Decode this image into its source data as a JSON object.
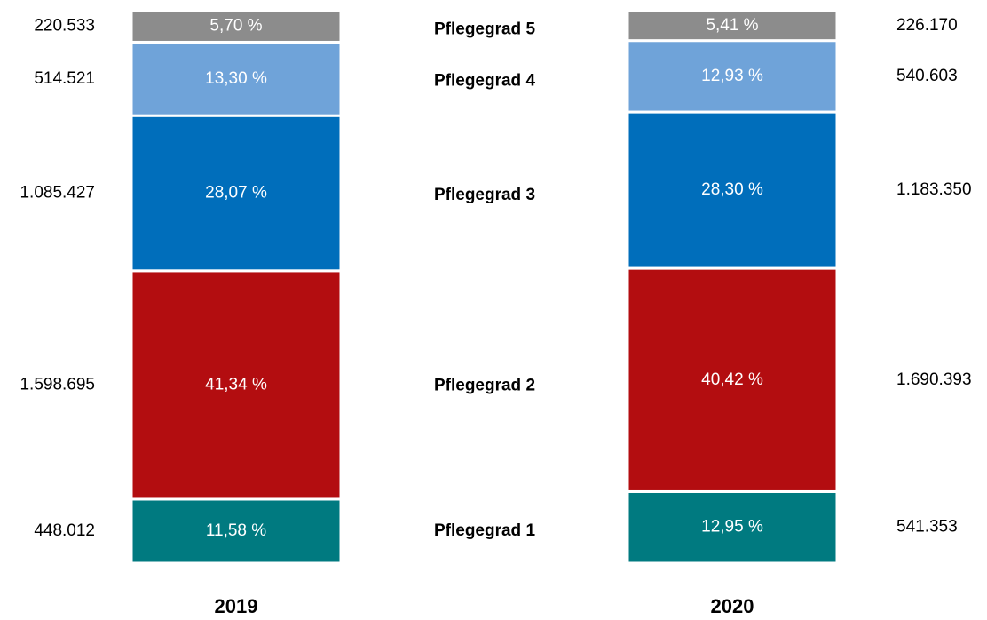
{
  "chart_data": {
    "type": "bar",
    "stacked": true,
    "categories": [
      "2019",
      "2020"
    ],
    "series": [
      {
        "name": "Pflegegrad 1",
        "color": "#007a80",
        "values": [
          11.58,
          12.95
        ],
        "value_labels": [
          "11,58 %",
          "12,95 %"
        ],
        "counts": [
          448012,
          541353
        ],
        "count_labels": [
          "448.012",
          "541.353"
        ]
      },
      {
        "name": "Pflegegrad 2",
        "color": "#b30d10",
        "values": [
          41.34,
          40.42
        ],
        "value_labels": [
          "41,34 %",
          "40,42 %"
        ],
        "counts": [
          1598695,
          1690393
        ],
        "count_labels": [
          "1.598.695",
          "1.690.393"
        ]
      },
      {
        "name": "Pflegegrad 3",
        "color": "#006ebb",
        "values": [
          28.07,
          28.3
        ],
        "value_labels": [
          "28,07 %",
          "28,30 %"
        ],
        "counts": [
          1085427,
          1183350
        ],
        "count_labels": [
          "1.085.427",
          "1.183.350"
        ]
      },
      {
        "name": "Pflegegrad 4",
        "color": "#6fa3d9",
        "values": [
          13.3,
          12.93
        ],
        "value_labels": [
          "13,30 %",
          "12,93 %"
        ],
        "counts": [
          514521,
          540603
        ],
        "count_labels": [
          "514.521",
          "540.603"
        ]
      },
      {
        "name": "Pflegegrad 5",
        "color": "#8c8c8c",
        "values": [
          5.7,
          5.41
        ],
        "value_labels": [
          "5,70 %",
          "5,41 %"
        ],
        "counts": [
          220533,
          226170
        ],
        "count_labels": [
          "220.533",
          "226.170"
        ]
      }
    ]
  }
}
